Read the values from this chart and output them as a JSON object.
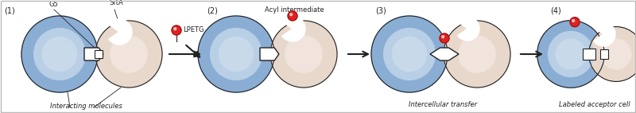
{
  "background_color": "#ffffff",
  "border_color": "#bbbbbb",
  "step_labels": [
    "(1)",
    "(2)",
    "(3)",
    "(4)"
  ],
  "cell_blue_outer": "#8aadd4",
  "cell_blue_inner": "#b8cfe6",
  "cell_blue_center": "#c8daea",
  "cell_pink_outer": "#e8d8cc",
  "cell_pink_inner": "#f0e4dc",
  "connector_fill": "#ffffff",
  "connector_edge": "#222222",
  "red_color": "#dd2222",
  "black": "#222222",
  "white": "#ffffff"
}
